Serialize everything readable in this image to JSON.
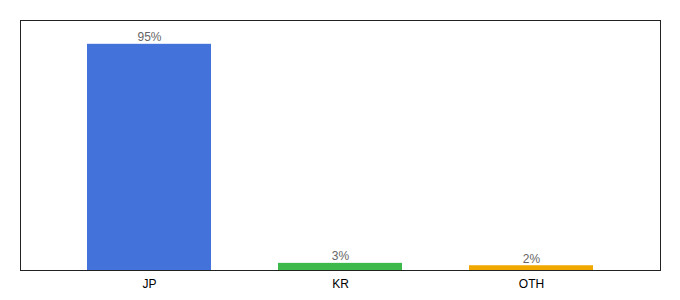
{
  "chart_data": {
    "type": "bar",
    "categories": [
      "JP",
      "KR",
      "OTH"
    ],
    "values": [
      95,
      3,
      2
    ],
    "value_labels": [
      "95%",
      "3%",
      "2%"
    ],
    "colors": [
      "#4472db",
      "#3db84a",
      "#f0a800"
    ],
    "ylim": [
      0,
      105
    ],
    "data_labels": true,
    "tick_labels": "x",
    "grid": false
  }
}
